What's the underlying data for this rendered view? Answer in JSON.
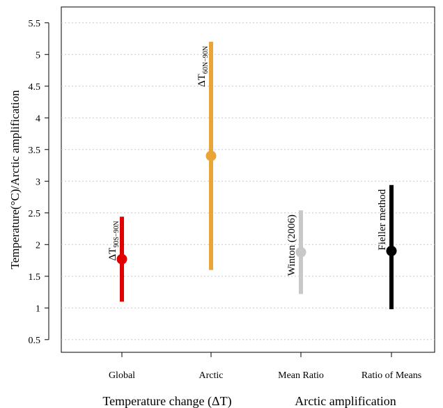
{
  "chart_data": {
    "type": "point-range",
    "ylabel": "Temperature(°C)/Arctic amplification",
    "ylim": [
      0.3,
      5.75
    ],
    "yticks": [
      "0.5",
      "1",
      "1.5",
      "2",
      "2.5",
      "3",
      "3.5",
      "4",
      "4.5",
      "5",
      "5.5"
    ],
    "ytick_values": [
      0.5,
      1,
      1.5,
      2,
      2.5,
      3,
      3.5,
      4,
      4.5,
      5,
      5.5
    ],
    "grid": "horizontal dotted",
    "categories": [
      "Global",
      "Arctic",
      "Mean Ratio",
      "Ratio of Means"
    ],
    "group_labels": [
      "Temperature change (ΔT)",
      "Arctic amplification"
    ],
    "series": [
      {
        "category": "Global",
        "center": 1.77,
        "lower": 1.1,
        "upper": 2.44,
        "color": "#e00000",
        "annotation": "ΔT",
        "annotation_sub": "90S−90N"
      },
      {
        "category": "Arctic",
        "center": 3.4,
        "lower": 1.6,
        "upper": 5.2,
        "color": "#e9a637",
        "annotation": "ΔT",
        "annotation_sub": "60N−90N"
      },
      {
        "category": "Mean Ratio",
        "center": 1.88,
        "lower": 1.22,
        "upper": 2.54,
        "color": "#c8c8c8",
        "annotation": "Winton (2006)",
        "annotation_sub": ""
      },
      {
        "category": "Ratio of Means",
        "center": 1.9,
        "lower": 0.98,
        "upper": 2.94,
        "color": "#000000",
        "annotation": "Fieller method",
        "annotation_sub": ""
      }
    ]
  }
}
